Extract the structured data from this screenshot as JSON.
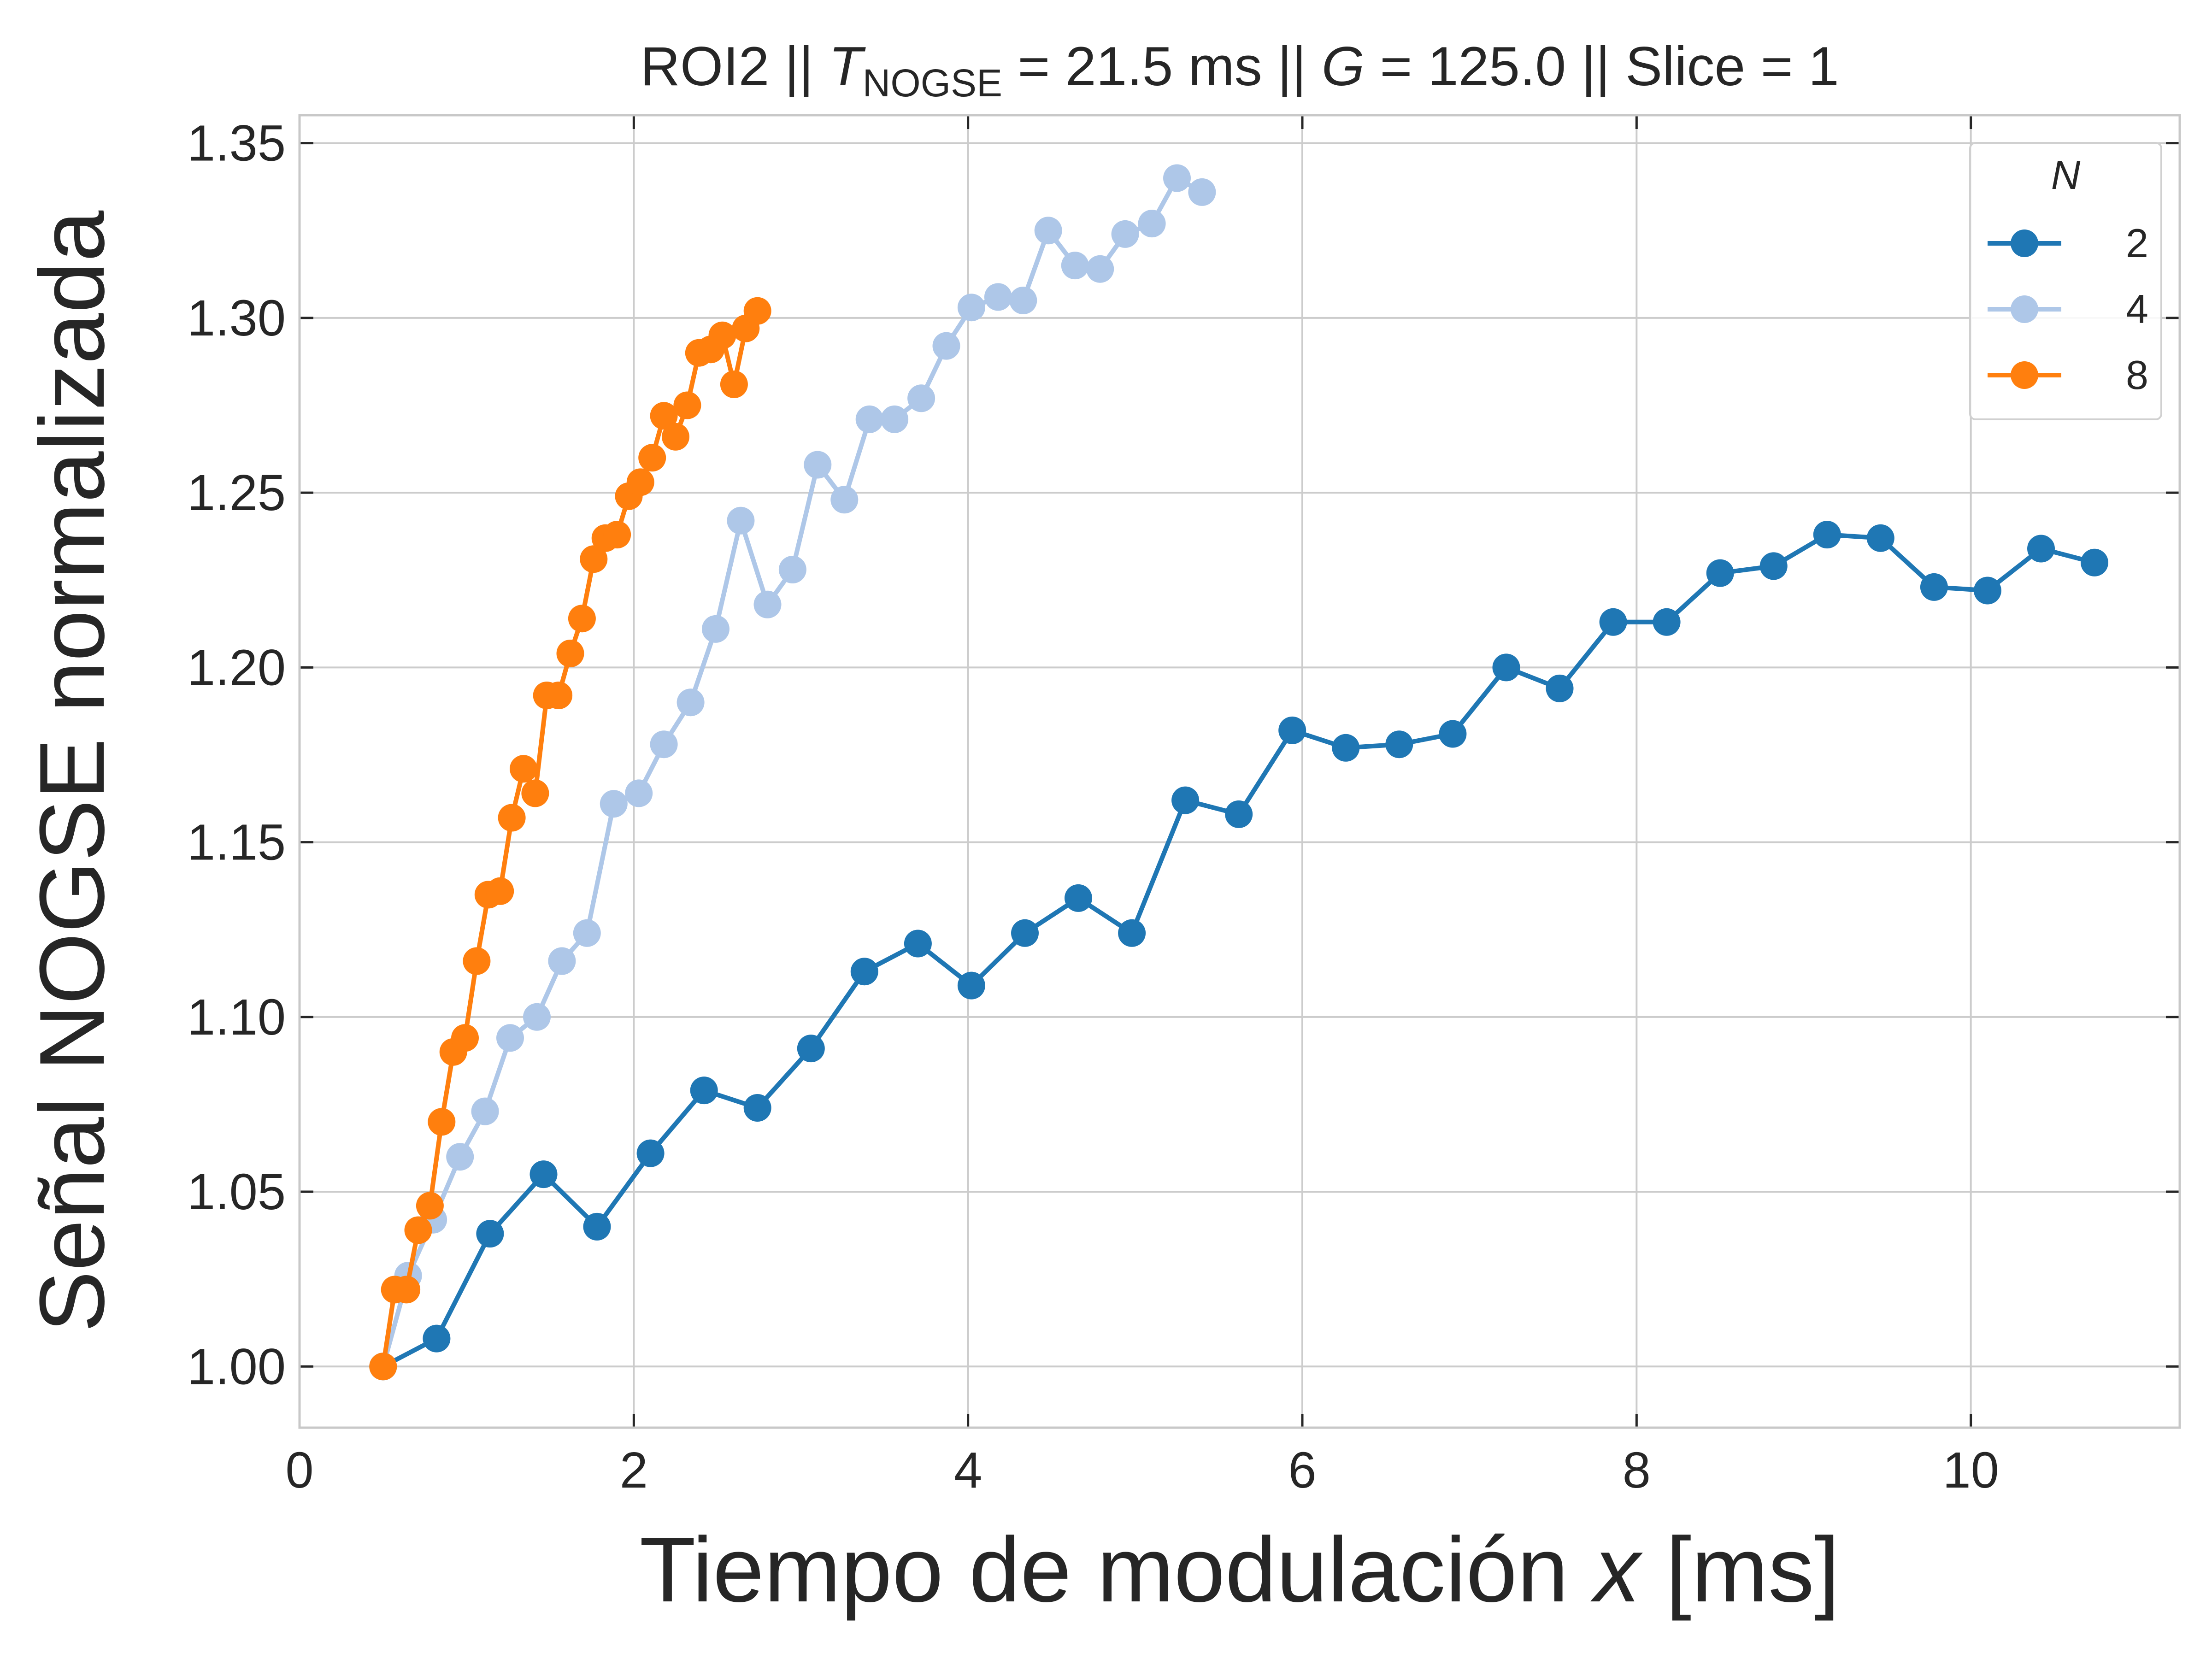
{
  "chart_data": {
    "type": "line",
    "title": {
      "pre": "ROI2 || ",
      "t_symbol": "T",
      "t_subscript": "NOGSE",
      "mid": " = 21.5 ms  ||  ",
      "g_symbol": "G",
      "post": " = 125.0 || Slice = 1"
    },
    "xlabel": {
      "text": "Tiempo de modulación ",
      "var": "x",
      "unit": " [ms]"
    },
    "ylabel": "Señal NOGSE normalizada",
    "xlim": [
      0,
      11.25
    ],
    "ylim": [
      0.9825,
      1.358
    ],
    "x_ticks": [
      0,
      2,
      4,
      6,
      8,
      10
    ],
    "x_tick_labels": [
      "0",
      "2",
      "4",
      "6",
      "8",
      "10"
    ],
    "y_ticks": [
      1.0,
      1.05,
      1.1,
      1.15,
      1.2,
      1.25,
      1.3,
      1.35
    ],
    "y_tick_labels": [
      "1.00",
      "1.05",
      "1.10",
      "1.15",
      "1.20",
      "1.25",
      "1.30",
      "1.35"
    ],
    "grid": true,
    "legend": {
      "title": "N",
      "placement": "top-right"
    },
    "colors": {
      "axis": "#262626",
      "spine": "#c8c8c8",
      "grid": "#cccccc"
    },
    "series": [
      {
        "name": "2",
        "color": "#1f77b4",
        "x": [
          0.5,
          0.82,
          1.14,
          1.46,
          1.78,
          2.1,
          2.42,
          2.74,
          3.06,
          3.38,
          3.7,
          4.02,
          4.34,
          4.66,
          4.98,
          5.3,
          5.62,
          5.94,
          6.26,
          6.58,
          6.9,
          7.22,
          7.54,
          7.86,
          8.18,
          8.5,
          8.82,
          9.14,
          9.46,
          9.78,
          10.1,
          10.42,
          10.74
        ],
        "y": [
          1.0,
          1.008,
          1.038,
          1.055,
          1.04,
          1.061,
          1.079,
          1.074,
          1.091,
          1.113,
          1.121,
          1.109,
          1.124,
          1.134,
          1.124,
          1.162,
          1.158,
          1.182,
          1.177,
          1.178,
          1.181,
          1.2,
          1.194,
          1.213,
          1.213,
          1.227,
          1.229,
          1.238,
          1.237,
          1.223,
          1.222,
          1.234,
          1.23
        ]
      },
      {
        "name": "4",
        "color": "#aec7e8",
        "x": [
          0.5,
          0.65,
          0.8,
          0.96,
          1.11,
          1.26,
          1.42,
          1.57,
          1.72,
          1.88,
          2.03,
          2.18,
          2.34,
          2.49,
          2.64,
          2.8,
          2.95,
          3.1,
          3.26,
          3.41,
          3.56,
          3.72,
          3.87,
          4.02,
          4.18,
          4.33,
          4.48,
          4.64,
          4.79,
          4.94,
          5.1,
          5.25,
          5.4
        ],
        "y": [
          1.0,
          1.026,
          1.042,
          1.06,
          1.073,
          1.094,
          1.1,
          1.116,
          1.124,
          1.161,
          1.164,
          1.178,
          1.19,
          1.211,
          1.242,
          1.218,
          1.228,
          1.258,
          1.248,
          1.271,
          1.271,
          1.277,
          1.292,
          1.303,
          1.306,
          1.305,
          1.325,
          1.315,
          1.314,
          1.324,
          1.327,
          1.34,
          1.336
        ]
      },
      {
        "name": "8",
        "color": "#ff7f0e",
        "x": [
          0.5,
          0.57,
          0.64,
          0.71,
          0.78,
          0.85,
          0.92,
          0.99,
          1.06,
          1.13,
          1.2,
          1.27,
          1.34,
          1.41,
          1.48,
          1.55,
          1.62,
          1.69,
          1.76,
          1.83,
          1.9,
          1.97,
          2.04,
          2.11,
          2.18,
          2.25,
          2.32,
          2.39,
          2.46,
          2.53,
          2.6,
          2.67,
          2.74
        ],
        "y": [
          1.0,
          1.022,
          1.022,
          1.039,
          1.046,
          1.07,
          1.09,
          1.094,
          1.116,
          1.135,
          1.136,
          1.157,
          1.171,
          1.164,
          1.192,
          1.192,
          1.204,
          1.214,
          1.231,
          1.237,
          1.238,
          1.249,
          1.253,
          1.26,
          1.272,
          1.266,
          1.275,
          1.29,
          1.291,
          1.295,
          1.281,
          1.297,
          1.302
        ]
      }
    ]
  }
}
